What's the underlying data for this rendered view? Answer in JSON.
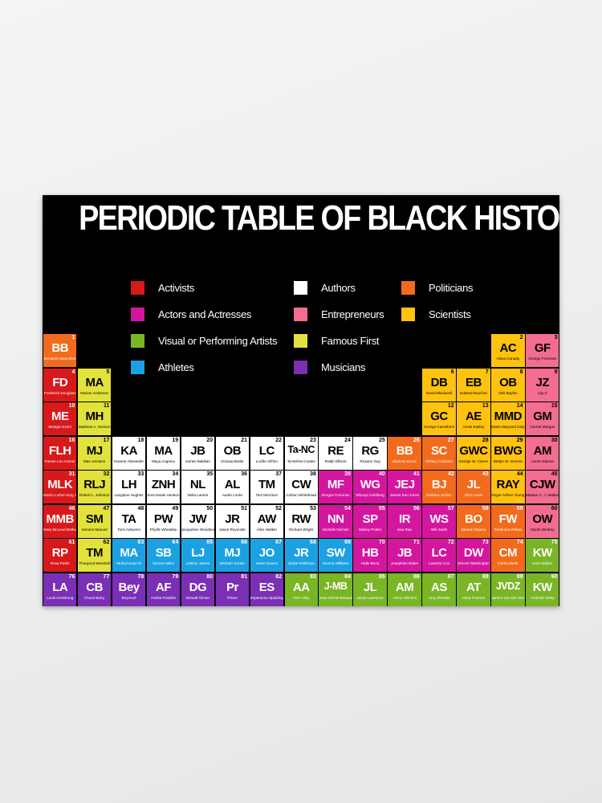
{
  "title": "PERIODIC TABLE OF BLACK HISTORY",
  "legend": [
    {
      "label": "Activists",
      "color": "#d7191c"
    },
    {
      "label": "Actors and Actresses",
      "color": "#d4169e"
    },
    {
      "label": "Visual or Performing Artists",
      "color": "#7ab526"
    },
    {
      "label": "Athletes",
      "color": "#1ba1e2"
    },
    {
      "label": "Authors",
      "color": "#ffffff"
    },
    {
      "label": "Entrepreneurs",
      "color": "#f26d8f"
    },
    {
      "label": "Famous First",
      "color": "#e3e13c"
    },
    {
      "label": "Musicians",
      "color": "#7b2fb5"
    },
    {
      "label": "Politicians",
      "color": "#f26b1d"
    },
    {
      "label": "Scientists",
      "color": "#ffc20e"
    }
  ],
  "rows": [
    [
      {
        "symbol": "BB",
        "number": "1",
        "name": "Benjamin Banneker",
        "color": "#f26b1d"
      },
      null,
      null,
      null,
      null,
      null,
      null,
      null,
      null,
      null,
      null,
      null,
      null,
      {
        "symbol": "AC",
        "number": "2",
        "name": "Alexa Canady",
        "color": "#ffc20e"
      },
      {
        "symbol": "GF",
        "number": "3",
        "name": "George Foreman",
        "color": "#f26d8f"
      }
    ],
    [
      {
        "symbol": "FD",
        "number": "4",
        "name": "Frederick Douglass",
        "color": "#d7191c"
      },
      {
        "symbol": "MA",
        "number": "5",
        "name": "Marian Anderson",
        "color": "#e3e13c"
      },
      null,
      null,
      null,
      null,
      null,
      null,
      null,
      null,
      null,
      {
        "symbol": "DB",
        "number": "6",
        "name": "David Blackwell",
        "color": "#ffc20e"
      },
      {
        "symbol": "EB",
        "number": "7",
        "name": "Edward Bouchet",
        "color": "#ffc20e"
      },
      {
        "symbol": "OB",
        "number": "8",
        "name": "Otis Boykin",
        "color": "#ffc20e"
      },
      {
        "symbol": "JZ",
        "number": "9",
        "name": "Jay-Z",
        "color": "#f26d8f"
      }
    ],
    [
      {
        "symbol": "ME",
        "number": "10",
        "name": "Medgar Evers",
        "color": "#d7191c"
      },
      {
        "symbol": "MH",
        "number": "11",
        "name": "Matthew A. Henson",
        "color": "#e3e13c"
      },
      null,
      null,
      null,
      null,
      null,
      null,
      null,
      null,
      null,
      {
        "symbol": "GC",
        "number": "12",
        "name": "George Carruthers",
        "color": "#ffc20e"
      },
      {
        "symbol": "AE",
        "number": "13",
        "name": "Annie Easley",
        "color": "#ffc20e"
      },
      {
        "symbol": "MMD",
        "number": "14",
        "name": "Marie Maynard Daly",
        "color": "#ffc20e"
      },
      {
        "symbol": "GM",
        "number": "15",
        "name": "Garrett Morgan",
        "color": "#f26d8f"
      }
    ],
    [
      {
        "symbol": "FLH",
        "number": "16",
        "name": "Fannie Lou Hamer",
        "color": "#d7191c"
      },
      {
        "symbol": "MJ",
        "number": "17",
        "name": "Mae Jemison",
        "color": "#e3e13c"
      },
      {
        "symbol": "KA",
        "number": "18",
        "name": "Kwame Alexander",
        "color": "#ffffff"
      },
      {
        "symbol": "MA",
        "number": "19",
        "name": "Maya Angelou",
        "color": "#ffffff"
      },
      {
        "symbol": "JB",
        "number": "20",
        "name": "James Baldwin",
        "color": "#ffffff"
      },
      {
        "symbol": "OB",
        "number": "21",
        "name": "Octavia Butler",
        "color": "#ffffff"
      },
      {
        "symbol": "LC",
        "number": "22",
        "name": "Lucille Clifton",
        "color": "#ffffff"
      },
      {
        "symbol": "Ta-NC",
        "number": "23",
        "name": "Ta-Nehisi Coates",
        "color": "#ffffff"
      },
      {
        "symbol": "RE",
        "number": "24",
        "name": "Ralph Ellison",
        "color": "#ffffff"
      },
      {
        "symbol": "RG",
        "number": "25",
        "name": "Roxane Gay",
        "color": "#ffffff"
      },
      {
        "symbol": "BB",
        "number": "26",
        "name": "Blanche Bruce",
        "color": "#f26b1d"
      },
      {
        "symbol": "SC",
        "number": "27",
        "name": "Shirley Chisholm",
        "color": "#f26b1d"
      },
      {
        "symbol": "GWC",
        "number": "28",
        "name": "George W. Carver",
        "color": "#ffc20e"
      },
      {
        "symbol": "BWG",
        "number": "29",
        "name": "Bettye W. Greene",
        "color": "#ffc20e"
      },
      {
        "symbol": "AM",
        "number": "30",
        "name": "Annie Malone",
        "color": "#f26d8f"
      }
    ],
    [
      {
        "symbol": "MLK",
        "number": "31",
        "name": "Martin Luther King Jr.",
        "color": "#d7191c"
      },
      {
        "symbol": "RLJ",
        "number": "32",
        "name": "Robert L. Johnson",
        "color": "#e3e13c"
      },
      {
        "symbol": "LH",
        "number": "33",
        "name": "Langston Hughes",
        "color": "#ffffff"
      },
      {
        "symbol": "ZNH",
        "number": "34",
        "name": "Zora Neale Hurston",
        "color": "#ffffff"
      },
      {
        "symbol": "NL",
        "number": "35",
        "name": "Nella Larsen",
        "color": "#ffffff"
      },
      {
        "symbol": "AL",
        "number": "36",
        "name": "Audre Lorde",
        "color": "#ffffff"
      },
      {
        "symbol": "TM",
        "number": "37",
        "name": "Toni Morrison",
        "color": "#ffffff"
      },
      {
        "symbol": "CW",
        "number": "38",
        "name": "Colson Whitehead",
        "color": "#ffffff"
      },
      {
        "symbol": "MF",
        "number": "39",
        "name": "Morgan Freeman",
        "color": "#d4169e"
      },
      {
        "symbol": "WG",
        "number": "40",
        "name": "Whoopi Goldberg",
        "color": "#d4169e"
      },
      {
        "symbol": "JEJ",
        "number": "41",
        "name": "James Earl Jones",
        "color": "#d4169e"
      },
      {
        "symbol": "BJ",
        "number": "42",
        "name": "Barbara Jordan",
        "color": "#f26b1d"
      },
      {
        "symbol": "JL",
        "number": "43",
        "name": "John Lewis",
        "color": "#f26b1d"
      },
      {
        "symbol": "RAY",
        "number": "44",
        "name": "Roger Arliner Young",
        "color": "#ffc20e"
      },
      {
        "symbol": "CJW",
        "number": "45",
        "name": "Madam C. J. Walker",
        "color": "#f26d8f"
      }
    ],
    [
      {
        "symbol": "MMB",
        "number": "46",
        "name": "Mary McLeod Bethune",
        "color": "#d7191c"
      },
      {
        "symbol": "SM",
        "number": "47",
        "name": "Simone Manuel",
        "color": "#e3e13c"
      },
      {
        "symbol": "TA",
        "number": "48",
        "name": "Tomi Adeyemi",
        "color": "#ffffff"
      },
      {
        "symbol": "PW",
        "number": "49",
        "name": "Phyllis Wheatley",
        "color": "#ffffff"
      },
      {
        "symbol": "JW",
        "number": "50",
        "name": "Jacqueline Woodson",
        "color": "#ffffff"
      },
      {
        "symbol": "JR",
        "number": "51",
        "name": "Jason Reynolds",
        "color": "#ffffff"
      },
      {
        "symbol": "AW",
        "number": "52",
        "name": "Alice Walker",
        "color": "#ffffff"
      },
      {
        "symbol": "RW",
        "number": "53",
        "name": "Richard Wright",
        "color": "#ffffff"
      },
      {
        "symbol": "NN",
        "number": "54",
        "name": "Nichelle Nichols",
        "color": "#d4169e"
      },
      {
        "symbol": "SP",
        "number": "55",
        "name": "Sidney Poitier",
        "color": "#d4169e"
      },
      {
        "symbol": "IR",
        "number": "56",
        "name": "Issa Rae",
        "color": "#d4169e"
      },
      {
        "symbol": "WS",
        "number": "57",
        "name": "Will Smith",
        "color": "#d4169e"
      },
      {
        "symbol": "BO",
        "number": "58",
        "name": "Barack Obama",
        "color": "#f26b1d"
      },
      {
        "symbol": "FW",
        "number": "59",
        "name": "Frederica Wilson",
        "color": "#f26b1d"
      },
      {
        "symbol": "OW",
        "number": "60",
        "name": "Oprah Winfrey",
        "color": "#f26d8f"
      }
    ],
    [
      {
        "symbol": "RP",
        "number": "61",
        "name": "Rosa Parks",
        "color": "#d7191c"
      },
      {
        "symbol": "TM",
        "number": "62",
        "name": "Thurgood Marshall",
        "color": "#e3e13c"
      },
      {
        "symbol": "MA",
        "number": "63",
        "name": "Muhammad Ali",
        "color": "#1ba1e2"
      },
      {
        "symbol": "SB",
        "number": "64",
        "name": "Simone Biles",
        "color": "#1ba1e2"
      },
      {
        "symbol": "LJ",
        "number": "65",
        "name": "LeBron James",
        "color": "#1ba1e2"
      },
      {
        "symbol": "MJ",
        "number": "66",
        "name": "Michael Jordan",
        "color": "#1ba1e2"
      },
      {
        "symbol": "JO",
        "number": "67",
        "name": "Jesse Owens",
        "color": "#1ba1e2"
      },
      {
        "symbol": "JR",
        "number": "68",
        "name": "Jackie Robinson",
        "color": "#1ba1e2"
      },
      {
        "symbol": "SW",
        "number": "69",
        "name": "Serena Williams",
        "color": "#1ba1e2"
      },
      {
        "symbol": "HB",
        "number": "70",
        "name": "Halle Berry",
        "color": "#d4169e"
      },
      {
        "symbol": "JB",
        "number": "71",
        "name": "Josephine Baker",
        "color": "#d4169e"
      },
      {
        "symbol": "LC",
        "number": "72",
        "name": "Laverne Cox",
        "color": "#d4169e"
      },
      {
        "symbol": "DW",
        "number": "73",
        "name": "Denzel Washington",
        "color": "#d4169e"
      },
      {
        "symbol": "CM",
        "number": "74",
        "name": "Carrie Meek",
        "color": "#f26b1d"
      },
      {
        "symbol": "KW",
        "number": "75",
        "name": "Kara Walker",
        "color": "#7ab526"
      }
    ],
    [
      {
        "symbol": "LA",
        "number": "76",
        "name": "Louis Armstrong",
        "color": "#7b2fb5"
      },
      {
        "symbol": "CB",
        "number": "77",
        "name": "Chuck Berry",
        "color": "#7b2fb5"
      },
      {
        "symbol": "Bey",
        "number": "78",
        "name": "Beyoncé",
        "color": "#7b2fb5"
      },
      {
        "symbol": "AF",
        "number": "79",
        "name": "Aretha Franklin",
        "color": "#7b2fb5"
      },
      {
        "symbol": "DG",
        "number": "80",
        "name": "Donald Glover",
        "color": "#7b2fb5"
      },
      {
        "symbol": "Pr",
        "number": "81",
        "name": "Prince",
        "color": "#7b2fb5"
      },
      {
        "symbol": "ES",
        "number": "82",
        "name": "Esperanza Spalding",
        "color": "#7b2fb5"
      },
      {
        "symbol": "AA",
        "number": "83",
        "name": "Alvin Ailey",
        "color": "#7ab526"
      },
      {
        "symbol": "J-MB",
        "number": "84",
        "name": "Jean-Michel Basquiat",
        "color": "#7ab526"
      },
      {
        "symbol": "JL",
        "number": "85",
        "name": "Jacob Lawrence",
        "color": "#7ab526"
      },
      {
        "symbol": "AM",
        "number": "86",
        "name": "Arthur Mitchell",
        "color": "#7ab526"
      },
      {
        "symbol": "AS",
        "number": "87",
        "name": "Amy Sherald",
        "color": "#7ab526"
      },
      {
        "symbol": "AT",
        "number": "88",
        "name": "Alma Thomas",
        "color": "#7ab526"
      },
      {
        "symbol": "JVDZ",
        "number": "89",
        "name": "James Van Der Zee",
        "color": "#7ab526"
      },
      {
        "symbol": "KW",
        "number": "90",
        "name": "Kehinde Wiley",
        "color": "#7ab526"
      }
    ]
  ]
}
